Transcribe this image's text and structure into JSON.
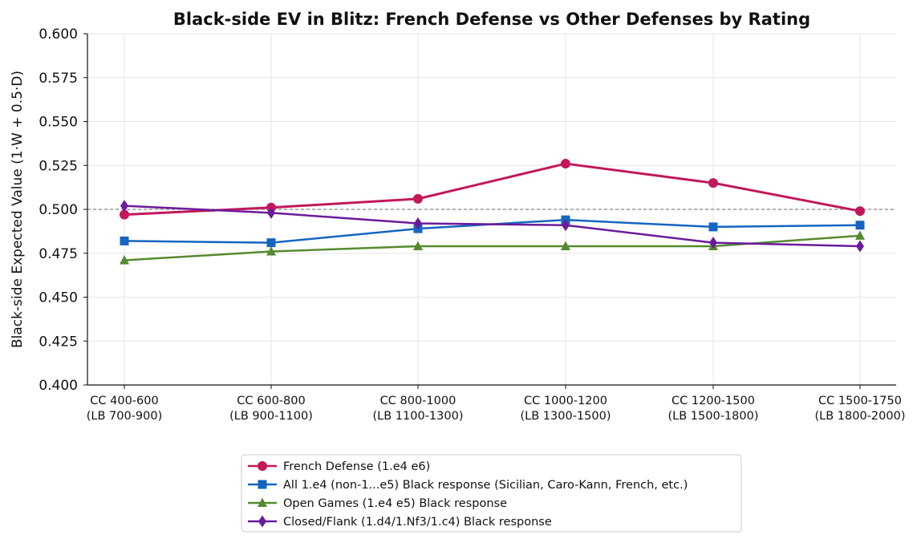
{
  "chart_data": {
    "type": "line",
    "title": "Black-side EV in Blitz: French Defense vs Other Defenses by Rating",
    "xlabel": "",
    "ylabel": "Black-side Expected Value (1·W + 0.5·D)",
    "ylim": [
      0.4,
      0.6
    ],
    "yticks": [
      "0.400",
      "0.425",
      "0.450",
      "0.475",
      "0.500",
      "0.525",
      "0.550",
      "0.575",
      "0.600"
    ],
    "categories": [
      [
        "CC 400-600",
        "(LB 700-900)"
      ],
      [
        "CC 600-800",
        "(LB 900-1100)"
      ],
      [
        "CC 800-1000",
        "(LB 1100-1300)"
      ],
      [
        "CC 1000-1200",
        "(LB 1300-1500)"
      ],
      [
        "CC 1200-1500",
        "(LB 1500-1800)"
      ],
      [
        "CC 1500-1750",
        "(LB 1800-2000)"
      ]
    ],
    "reference_line": 0.5,
    "grid": true,
    "legend_position": "bottom-center",
    "series": [
      {
        "name": "French Defense (1.e4 e6)",
        "color": "#c2185b",
        "marker": "circle",
        "values": [
          0.497,
          0.501,
          0.506,
          0.526,
          0.515,
          0.499
        ]
      },
      {
        "name": "All 1.e4 (non-1...e5) Black response (Sicilian, Caro-Kann, French, etc.)",
        "color": "#1565c0",
        "marker": "square",
        "values": [
          0.482,
          0.481,
          0.489,
          0.494,
          0.49,
          0.491
        ]
      },
      {
        "name": "Open Games (1.e4 e5) Black response",
        "color": "#558b2f",
        "marker": "triangle",
        "values": [
          0.471,
          0.476,
          0.479,
          0.479,
          0.479,
          0.485
        ]
      },
      {
        "name": "Closed/Flank (1.d4/1.Nf3/1.c4) Black response",
        "color": "#6a1b9a",
        "marker": "diamond",
        "values": [
          0.502,
          0.498,
          0.492,
          0.491,
          0.481,
          0.479
        ]
      }
    ]
  }
}
